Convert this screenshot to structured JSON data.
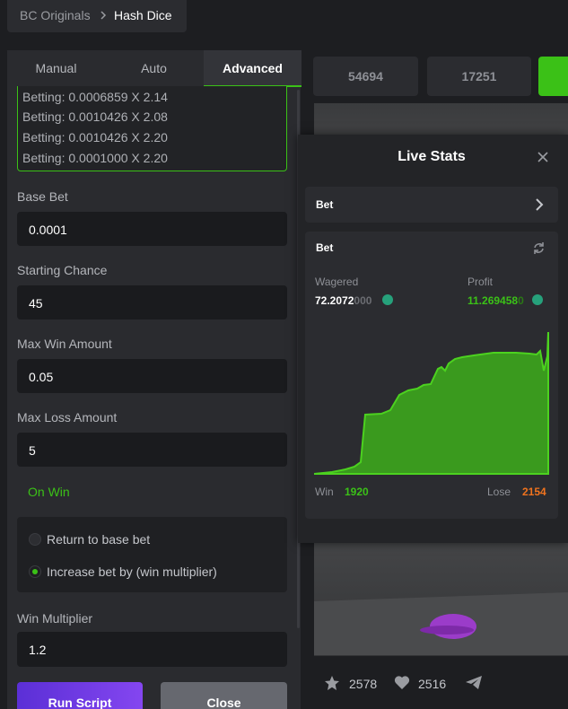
{
  "breadcrumb": [
    "BC Originals",
    "Hash Dice"
  ],
  "tabs": [
    "Manual",
    "Auto",
    "Advanced"
  ],
  "log": [
    "Betting: 0.0006859 X 2.14",
    "Betting: 0.0010426 X 2.08",
    "Betting: 0.0010426 X 2.20",
    "Betting: 0.0001000 X 2.20"
  ],
  "fields": [
    {
      "label": "Base Bet",
      "value": "0.0001"
    },
    {
      "label": "Starting Chance",
      "value": "45"
    },
    {
      "label": "Max Win Amount",
      "value": "0.05"
    },
    {
      "label": "Max Loss Amount",
      "value": "5"
    }
  ],
  "on_win": "On Win",
  "options": [
    "Return to base bet",
    "Increase bet by (win multiplier)"
  ],
  "win_multiplier": {
    "label": "Win Multiplier",
    "value": "1.2"
  },
  "buttons": [
    "Run Script",
    "Close"
  ],
  "top_numbers": [
    "54694",
    "17251"
  ],
  "live_stats": {
    "title": "Live Stats",
    "bet_row": "Bet",
    "card_title": "Bet",
    "wagered_label": "Wagered",
    "wagered_value": "72.2072",
    "wagered_tail": "000",
    "profit_label": "Profit",
    "profit_value": "11.269458",
    "profit_tail": "0",
    "win_label": "Win",
    "win_value": "1920",
    "lose_label": "Lose",
    "lose_value": "2154"
  },
  "footer": {
    "stars": "2578",
    "likes": "2516"
  }
}
